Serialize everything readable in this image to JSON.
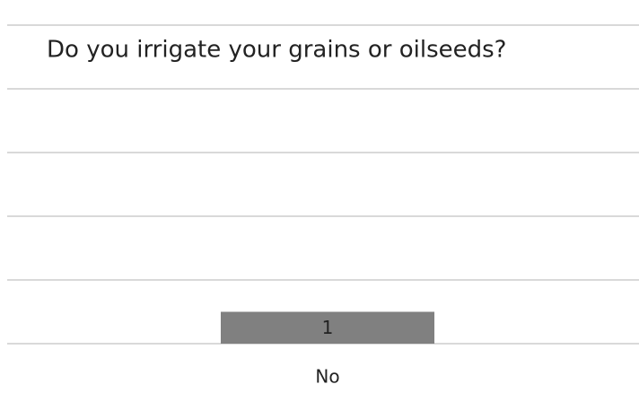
{
  "chart_data": {
    "type": "bar",
    "title": "Do you irrigate your grains or oilseeds?",
    "categories": [
      "No"
    ],
    "values": [
      1
    ],
    "color": "#808080",
    "ylim": [
      0,
      10
    ],
    "yticks": [
      0,
      2,
      4,
      6,
      8,
      10
    ],
    "grid": true
  }
}
